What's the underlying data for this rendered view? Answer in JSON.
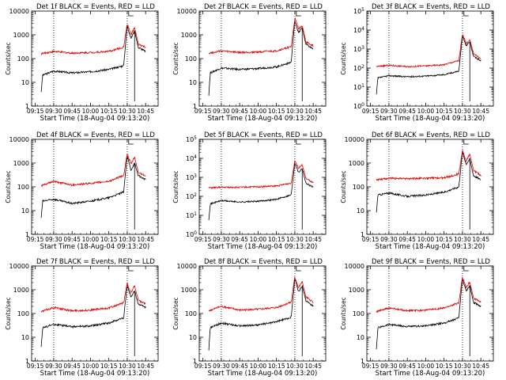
{
  "xlabel": "Start Time (18-Aug-04 09:13:20)",
  "ylabel": "Counts/sec",
  "colors": {
    "events": "#000000",
    "lld": "#e00000",
    "axis": "#000000"
  },
  "x_ticks": [
    "09:15",
    "09:30",
    "09:45",
    "10:00",
    "10:15",
    "10:30",
    "10:45"
  ],
  "chart_data": [
    {
      "type": "line",
      "title": "Det 1f BLACK = Events, RED = LLD",
      "ylim": [
        1,
        10000
      ],
      "log_y": true,
      "ytick_style": "plain",
      "ytick_labels": [
        "1",
        "10",
        "100",
        "1000",
        "10000"
      ],
      "series": [
        {
          "name": "Events",
          "color": "#000000",
          "x": [
            9.33,
            9.35,
            9.5,
            9.75,
            10.0,
            10.25,
            10.45,
            10.5,
            10.55,
            10.6,
            10.65,
            10.75
          ],
          "y": [
            4,
            20,
            30,
            25,
            28,
            35,
            50,
            2500,
            700,
            1500,
            300,
            200
          ]
        },
        {
          "name": "LLD",
          "color": "#e00000",
          "x": [
            9.33,
            9.5,
            9.75,
            10.0,
            10.25,
            10.45,
            10.5,
            10.55,
            10.6,
            10.65,
            10.75
          ],
          "y": [
            160,
            200,
            170,
            180,
            200,
            300,
            3000,
            1000,
            2000,
            400,
            300
          ]
        }
      ]
    },
    {
      "type": "line",
      "title": "Det 2f BLACK = Events, RED = LLD",
      "ylim": [
        1,
        10000
      ],
      "log_y": true,
      "ytick_style": "plain",
      "ytick_labels": [
        "1",
        "10",
        "100",
        "1000",
        "10000"
      ],
      "series": [
        {
          "name": "Events",
          "color": "#000000",
          "x": [
            9.33,
            9.35,
            9.5,
            9.75,
            10.0,
            10.25,
            10.45,
            10.5,
            10.55,
            10.6,
            10.65,
            10.75
          ],
          "y": [
            3,
            25,
            40,
            35,
            38,
            45,
            70,
            4000,
            1200,
            2000,
            400,
            250
          ]
        },
        {
          "name": "LLD",
          "color": "#e00000",
          "x": [
            9.33,
            9.5,
            9.75,
            10.0,
            10.25,
            10.45,
            10.5,
            10.55,
            10.6,
            10.65,
            10.75
          ],
          "y": [
            170,
            210,
            180,
            190,
            210,
            320,
            5000,
            1800,
            2500,
            500,
            350
          ]
        }
      ]
    },
    {
      "type": "line",
      "title": "Det 3f BLACK = Events, RED = LLD",
      "ylim": [
        1,
        100000
      ],
      "log_y": true,
      "ytick_style": "exp",
      "ytick_labels": [
        "10^0",
        "10^1",
        "10^2",
        "10^3",
        "10^4",
        "10^5"
      ],
      "series": [
        {
          "name": "Events",
          "color": "#000000",
          "x": [
            9.33,
            9.35,
            9.5,
            9.75,
            10.0,
            10.25,
            10.45,
            10.5,
            10.55,
            10.6,
            10.65,
            10.75
          ],
          "y": [
            4,
            30,
            40,
            35,
            38,
            45,
            70,
            5000,
            1500,
            2500,
            400,
            250
          ]
        },
        {
          "name": "LLD",
          "color": "#e00000",
          "x": [
            9.33,
            9.5,
            9.75,
            10.0,
            10.25,
            10.45,
            10.5,
            10.55,
            10.6,
            10.65,
            10.75
          ],
          "y": [
            120,
            140,
            120,
            130,
            150,
            250,
            6000,
            2000,
            3000,
            600,
            300
          ]
        }
      ]
    },
    {
      "type": "line",
      "title": "Det 4f BLACK = Events, RED = LLD",
      "ylim": [
        1,
        10000
      ],
      "log_y": true,
      "ytick_style": "plain",
      "ytick_labels": [
        "1",
        "10",
        "100",
        "1000",
        "10000"
      ],
      "series": [
        {
          "name": "Events",
          "color": "#000000",
          "x": [
            9.33,
            9.35,
            9.5,
            9.75,
            10.0,
            10.25,
            10.45,
            10.5,
            10.55,
            10.6,
            10.65,
            10.75
          ],
          "y": [
            5,
            25,
            30,
            20,
            25,
            35,
            60,
            2000,
            500,
            1000,
            300,
            200
          ]
        },
        {
          "name": "LLD",
          "color": "#e00000",
          "x": [
            9.33,
            9.5,
            9.75,
            10.0,
            10.25,
            10.45,
            10.5,
            10.55,
            10.6,
            10.65,
            10.75
          ],
          "y": [
            110,
            170,
            120,
            140,
            170,
            300,
            2500,
            900,
            1800,
            400,
            300
          ]
        }
      ]
    },
    {
      "type": "line",
      "title": "Det 5f BLACK = Events, RED = LLD",
      "ylim": [
        1,
        100000
      ],
      "log_y": true,
      "ytick_style": "exp",
      "ytick_labels": [
        "10^0",
        "10^1",
        "10^2",
        "10^3",
        "10^4",
        "10^5"
      ],
      "series": [
        {
          "name": "Events",
          "color": "#000000",
          "x": [
            9.33,
            9.35,
            9.5,
            9.75,
            10.0,
            10.25,
            10.45,
            10.5,
            10.55,
            10.6,
            10.65,
            10.75
          ],
          "y": [
            6,
            40,
            60,
            50,
            55,
            70,
            120,
            6000,
            1800,
            3000,
            500,
            300
          ]
        },
        {
          "name": "LLD",
          "color": "#e00000",
          "x": [
            9.33,
            9.5,
            9.75,
            10.0,
            10.25,
            10.45,
            10.5,
            10.55,
            10.6,
            10.65,
            10.75
          ],
          "y": [
            280,
            300,
            300,
            320,
            350,
            500,
            8000,
            3000,
            4500,
            900,
            500
          ]
        }
      ]
    },
    {
      "type": "line",
      "title": "Det 6f BLACK = Events, RED = LLD",
      "ylim": [
        1,
        10000
      ],
      "log_y": true,
      "ytick_style": "plain",
      "ytick_labels": [
        "1",
        "10",
        "100",
        "1000",
        "10000"
      ],
      "series": [
        {
          "name": "Events",
          "color": "#000000",
          "x": [
            9.33,
            9.35,
            9.5,
            9.75,
            10.0,
            10.25,
            10.45,
            10.5,
            10.55,
            10.6,
            10.65,
            10.75
          ],
          "y": [
            8,
            45,
            55,
            40,
            45,
            60,
            100,
            3000,
            900,
            1500,
            300,
            200
          ]
        },
        {
          "name": "LLD",
          "color": "#e00000",
          "x": [
            9.33,
            9.5,
            9.75,
            10.0,
            10.25,
            10.45,
            10.5,
            10.55,
            10.6,
            10.65,
            10.75
          ],
          "y": [
            200,
            230,
            220,
            230,
            240,
            350,
            3500,
            1200,
            2500,
            500,
            300
          ]
        }
      ]
    },
    {
      "type": "line",
      "title": "Det 7f BLACK = Events, RED = LLD",
      "ylim": [
        1,
        10000
      ],
      "log_y": true,
      "ytick_style": "plain",
      "ytick_labels": [
        "1",
        "10",
        "100",
        "1000",
        "10000"
      ],
      "series": [
        {
          "name": "Events",
          "color": "#000000",
          "x": [
            9.33,
            9.35,
            9.5,
            9.75,
            10.0,
            10.25,
            10.45,
            10.5,
            10.55,
            10.6,
            10.65,
            10.75
          ],
          "y": [
            4,
            25,
            35,
            28,
            30,
            40,
            65,
            1500,
            500,
            900,
            250,
            180
          ]
        },
        {
          "name": "LLD",
          "color": "#e00000",
          "x": [
            9.33,
            9.5,
            9.75,
            10.0,
            10.25,
            10.45,
            10.5,
            10.55,
            10.6,
            10.65,
            10.75
          ],
          "y": [
            120,
            180,
            130,
            140,
            170,
            280,
            2000,
            700,
            1500,
            350,
            250
          ]
        }
      ]
    },
    {
      "type": "line",
      "title": "Det 8f BLACK = Events, RED = LLD",
      "ylim": [
        1,
        10000
      ],
      "log_y": true,
      "ytick_style": "plain",
      "ytick_labels": [
        "1",
        "10",
        "100",
        "1000",
        "10000"
      ],
      "series": [
        {
          "name": "Events",
          "color": "#000000",
          "x": [
            9.33,
            9.35,
            9.5,
            9.75,
            10.0,
            10.25,
            10.45,
            10.5,
            10.55,
            10.6,
            10.65,
            10.75
          ],
          "y": [
            3,
            25,
            40,
            30,
            33,
            45,
            70,
            3000,
            800,
            1500,
            350,
            200
          ]
        },
        {
          "name": "LLD",
          "color": "#e00000",
          "x": [
            9.33,
            9.5,
            9.75,
            10.0,
            10.25,
            10.45,
            10.5,
            10.55,
            10.6,
            10.65,
            10.75
          ],
          "y": [
            130,
            200,
            140,
            150,
            180,
            300,
            3500,
            1200,
            2200,
            500,
            300
          ]
        }
      ]
    },
    {
      "type": "line",
      "title": "Det 9f BLACK = Events, RED = LLD",
      "ylim": [
        1,
        10000
      ],
      "log_y": true,
      "ytick_style": "plain",
      "ytick_labels": [
        "1",
        "10",
        "100",
        "1000",
        "10000"
      ],
      "series": [
        {
          "name": "Events",
          "color": "#000000",
          "x": [
            9.33,
            9.35,
            9.5,
            9.75,
            10.0,
            10.25,
            10.45,
            10.5,
            10.55,
            10.6,
            10.65,
            10.75
          ],
          "y": [
            3,
            25,
            35,
            28,
            30,
            40,
            65,
            3000,
            900,
            1500,
            300,
            200
          ]
        },
        {
          "name": "LLD",
          "color": "#e00000",
          "x": [
            9.33,
            9.5,
            9.75,
            10.0,
            10.25,
            10.45,
            10.5,
            10.55,
            10.6,
            10.65,
            10.75
          ],
          "y": [
            120,
            170,
            130,
            140,
            170,
            280,
            3500,
            1200,
            2200,
            450,
            300
          ]
        }
      ]
    }
  ]
}
